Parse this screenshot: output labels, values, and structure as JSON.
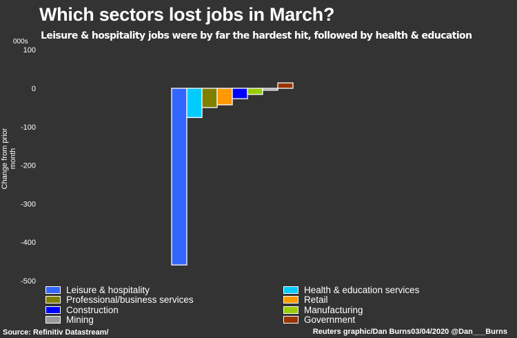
{
  "chart_data": {
    "type": "bar",
    "title": "Which sectors lost jobs in March?",
    "subtitle": "Leisure & hospitality jobs were by far the hardest hit, followed by health & education",
    "ylabel": "Change from prior month",
    "unit": "000s",
    "ylim": [
      -500,
      100
    ],
    "yticks": [
      100,
      0,
      -100,
      -200,
      -300,
      -400,
      -500
    ],
    "grid": false,
    "legend": "bottom",
    "series": [
      {
        "name": "Leisure & hospitality",
        "value": -459,
        "color": "#3366ff"
      },
      {
        "name": "Health & education services",
        "value": -76,
        "color": "#00ccff"
      },
      {
        "name": "Professional/business services",
        "value": -50,
        "color": "#808000"
      },
      {
        "name": "Retail",
        "value": -43,
        "color": "#ff9900"
      },
      {
        "name": "Construction",
        "value": -27,
        "color": "#0000ff"
      },
      {
        "name": "Manufacturing",
        "value": -16,
        "color": "#99cc00"
      },
      {
        "name": "Mining",
        "value": -5,
        "color": "#999999"
      },
      {
        "name": "Government",
        "value": 14,
        "color": "#993300"
      }
    ]
  },
  "footer": {
    "source": "Source: Refinitiv Datastream/",
    "credit": "Reuters graphic/Dan Burns03/04/2020 @Dan___Burns"
  }
}
